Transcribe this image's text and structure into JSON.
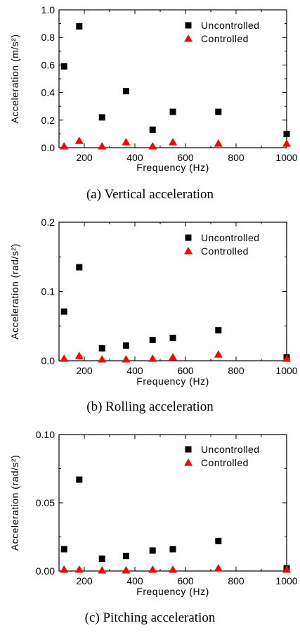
{
  "chart_data": [
    {
      "type": "scatter",
      "caption": "(a)  Vertical  acceleration",
      "xlabel": "Frequency (Hz)",
      "ylabel": "Acceleration (m/s²)",
      "xlim": [
        100,
        1000
      ],
      "ylim": [
        0.0,
        1.0
      ],
      "xticks": [
        200,
        400,
        600,
        800,
        1000
      ],
      "yticks": [
        0.0,
        0.2,
        0.4,
        0.6,
        0.8,
        1.0
      ],
      "ytick_labels": [
        "0.0",
        "0.2",
        "0.4",
        "0.6",
        "0.8",
        "1.0"
      ],
      "legend_position": "top-right",
      "grid": false,
      "series": [
        {
          "name": "Uncontrolled",
          "marker": "square",
          "color": "#000000",
          "x": [
            120,
            180,
            270,
            365,
            470,
            550,
            730,
            1000
          ],
          "y": [
            0.59,
            0.88,
            0.22,
            0.41,
            0.13,
            0.26,
            0.26,
            0.1
          ]
        },
        {
          "name": "Controlled",
          "marker": "triangle",
          "color": "#ff0000",
          "x": [
            120,
            180,
            270,
            365,
            470,
            550,
            730,
            1000
          ],
          "y": [
            0.01,
            0.05,
            0.01,
            0.04,
            0.01,
            0.04,
            0.03,
            0.03
          ]
        }
      ]
    },
    {
      "type": "scatter",
      "caption": "(b)  Rolling  acceleration",
      "xlabel": "Frequency (Hz)",
      "ylabel": "Acceleration (rad/s²)",
      "xlim": [
        100,
        1000
      ],
      "ylim": [
        0.0,
        0.2
      ],
      "xticks": [
        200,
        400,
        600,
        800,
        1000
      ],
      "yticks": [
        0.0,
        0.1,
        0.2
      ],
      "ytick_labels": [
        "0.0",
        "0.1",
        "0.2"
      ],
      "legend_position": "top-right",
      "grid": false,
      "series": [
        {
          "name": "Uncontrolled",
          "marker": "square",
          "color": "#000000",
          "x": [
            120,
            180,
            270,
            365,
            470,
            550,
            730,
            1000
          ],
          "y": [
            0.071,
            0.135,
            0.018,
            0.022,
            0.03,
            0.033,
            0.044,
            0.005
          ]
        },
        {
          "name": "Controlled",
          "marker": "triangle",
          "color": "#ff0000",
          "x": [
            120,
            180,
            270,
            365,
            470,
            550,
            730,
            1000
          ],
          "y": [
            0.003,
            0.007,
            0.002,
            0.002,
            0.003,
            0.005,
            0.009,
            0.003
          ]
        }
      ]
    },
    {
      "type": "scatter",
      "caption": "(c)  Pitching  acceleration",
      "xlabel": "Frequency (Hz)",
      "ylabel": "Acceleration (rad/s²)",
      "xlim": [
        100,
        1000
      ],
      "ylim": [
        0.0,
        0.1
      ],
      "xticks": [
        200,
        400,
        600,
        800,
        1000
      ],
      "yticks": [
        0.0,
        0.05,
        0.1
      ],
      "ytick_labels": [
        "0.00",
        "0.05",
        "0.10"
      ],
      "legend_position": "top-right",
      "grid": false,
      "series": [
        {
          "name": "Uncontrolled",
          "marker": "square",
          "color": "#000000",
          "x": [
            120,
            180,
            270,
            365,
            470,
            550,
            730,
            1000
          ],
          "y": [
            0.016,
            0.067,
            0.009,
            0.011,
            0.015,
            0.016,
            0.022,
            0.002
          ]
        },
        {
          "name": "Controlled",
          "marker": "triangle",
          "color": "#ff0000",
          "x": [
            120,
            180,
            270,
            365,
            470,
            550,
            730,
            1000
          ],
          "y": [
            0.001,
            0.001,
            0.0005,
            0.0005,
            0.001,
            0.001,
            0.002,
            0.001
          ]
        }
      ]
    }
  ]
}
